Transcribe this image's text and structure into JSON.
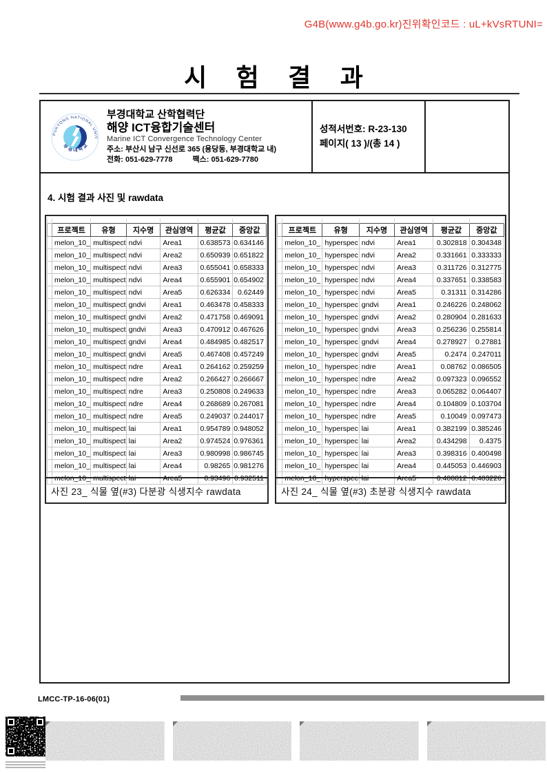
{
  "page": {
    "verification_code": "G4B(www.g4b.go.kr)진위확인코드 : uL+kVsRTUNI=",
    "title": "시 험 결 과"
  },
  "header": {
    "logo": {
      "ring_text_top": "PUKYONG NATIONAL UNIVERSITY",
      "ring_text_bottom": "부 경 대 학 교"
    },
    "org_line1": "부경대학교 산학협력단",
    "org_line2": "해양 ICT융합기술센터",
    "org_en": "Marine ICT Convergence Technology Center",
    "address": "주소: 부산시 남구 신선로 365 (용당동, 부경대학교 내)",
    "phone": "전화: 051-629-7778",
    "fax": "팩스: 051-629-7780",
    "report_no": "성적서번호: R-23-130",
    "page_info": "페이지( 13 )/(총 14 )"
  },
  "section_title": "4. 시험 결과 사진 및 rawdata",
  "tables": [
    {
      "caption": "사진 23_ 식물 옆(#3) 다분광 식생지수 rawdata",
      "headers": [
        "프로젝트",
        "유형",
        "지수명",
        "관심영역",
        "평균값",
        "중앙값"
      ],
      "rows": [
        [
          "melon_10_",
          "multispect",
          "ndvi",
          "Area1",
          "0.638573",
          "0.634146"
        ],
        [
          "melon_10_",
          "multispect",
          "ndvi",
          "Area2",
          "0.650939",
          "0.651822"
        ],
        [
          "melon_10_",
          "multispect",
          "ndvi",
          "Area3",
          "0.655041",
          "0.658333"
        ],
        [
          "melon_10_",
          "multispect",
          "ndvi",
          "Area4",
          "0.655901",
          "0.654902"
        ],
        [
          "melon_10_",
          "multispect",
          "ndvi",
          "Area5",
          "0.626334",
          "0.62449"
        ],
        [
          "melon_10_",
          "multispect",
          "gndvi",
          "Area1",
          "0.463478",
          "0.458333"
        ],
        [
          "melon_10_",
          "multispect",
          "gndvi",
          "Area2",
          "0.471758",
          "0.469091"
        ],
        [
          "melon_10_",
          "multispect",
          "gndvi",
          "Area3",
          "0.470912",
          "0.467626"
        ],
        [
          "melon_10_",
          "multispect",
          "gndvi",
          "Area4",
          "0.484985",
          "0.482517"
        ],
        [
          "melon_10_",
          "multispect",
          "gndvi",
          "Area5",
          "0.467408",
          "0.457249"
        ],
        [
          "melon_10_",
          "multispect",
          "ndre",
          "Area1",
          "0.264162",
          "0.259259"
        ],
        [
          "melon_10_",
          "multispect",
          "ndre",
          "Area2",
          "0.266427",
          "0.266667"
        ],
        [
          "melon_10_",
          "multispect",
          "ndre",
          "Area3",
          "0.250808",
          "0.249633"
        ],
        [
          "melon_10_",
          "multispect",
          "ndre",
          "Area4",
          "0.268689",
          "0.267081"
        ],
        [
          "melon_10_",
          "multispect",
          "ndre",
          "Area5",
          "0.249037",
          "0.244017"
        ],
        [
          "melon_10_",
          "multispect",
          "lai",
          "Area1",
          "0.954789",
          "0.948052"
        ],
        [
          "melon_10_",
          "multispect",
          "lai",
          "Area2",
          "0.974524",
          "0.976361"
        ],
        [
          "melon_10_",
          "multispect",
          "lai",
          "Area3",
          "0.980998",
          "0.986745"
        ],
        [
          "melon_10_",
          "multispect",
          "lai",
          "Area4",
          "0.98265",
          "0.981276"
        ],
        [
          "melon_10_",
          "multispect",
          "lai",
          "Area5",
          "0.93496",
          "0.932511"
        ]
      ]
    },
    {
      "caption": "사진 24_ 식물 옆(#3) 초분광 식생지수 rawdata",
      "headers": [
        "프로젝트",
        "유형",
        "지수명",
        "관심영역",
        "평균값",
        "중앙값"
      ],
      "rows": [
        [
          "melon_10_",
          "hyperspec",
          "ndvi",
          "Area1",
          "0.302818",
          "0.304348"
        ],
        [
          "melon_10_",
          "hyperspec",
          "ndvi",
          "Area2",
          "0.331661",
          "0.333333"
        ],
        [
          "melon_10_",
          "hyperspec",
          "ndvi",
          "Area3",
          "0.311726",
          "0.312775"
        ],
        [
          "melon_10_",
          "hyperspec",
          "ndvi",
          "Area4",
          "0.337651",
          "0.338583"
        ],
        [
          "melon_10_",
          "hyperspec",
          "ndvi",
          "Area5",
          "0.31311",
          "0.314286"
        ],
        [
          "melon_10_",
          "hyperspec",
          "gndvi",
          "Area1",
          "0.246226",
          "0.248062"
        ],
        [
          "melon_10_",
          "hyperspec",
          "gndvi",
          "Area2",
          "0.280904",
          "0.281633"
        ],
        [
          "melon_10_",
          "hyperspec",
          "gndvi",
          "Area3",
          "0.256236",
          "0.255814"
        ],
        [
          "melon_10_",
          "hyperspec",
          "gndvi",
          "Area4",
          "0.278927",
          "0.27881"
        ],
        [
          "melon_10_",
          "hyperspec",
          "gndvi",
          "Area5",
          "0.2474",
          "0.247011"
        ],
        [
          "melon_10_",
          "hyperspec",
          "ndre",
          "Area1",
          "0.08762",
          "0.086505"
        ],
        [
          "melon_10_",
          "hyperspec",
          "ndre",
          "Area2",
          "0.097323",
          "0.096552"
        ],
        [
          "melon_10_",
          "hyperspec",
          "ndre",
          "Area3",
          "0.065282",
          "0.064407"
        ],
        [
          "melon_10_",
          "hyperspec",
          "ndre",
          "Area4",
          "0.104809",
          "0.103704"
        ],
        [
          "melon_10_",
          "hyperspec",
          "ndre",
          "Area5",
          "0.10049",
          "0.097473"
        ],
        [
          "melon_10_",
          "hyperspec",
          "lai",
          "Area1",
          "0.382199",
          "0.385246"
        ],
        [
          "melon_10_",
          "hyperspec",
          "lai",
          "Area2",
          "0.434298",
          "0.4375"
        ],
        [
          "melon_10_",
          "hyperspec",
          "lai",
          "Area3",
          "0.398316",
          "0.400498"
        ],
        [
          "melon_10_",
          "hyperspec",
          "lai",
          "Area4",
          "0.445053",
          "0.446903"
        ],
        [
          "melon_10_",
          "hyperspec",
          "lai",
          "Area5",
          "0.400812",
          "0.403226"
        ]
      ]
    }
  ],
  "footer": {
    "doc_code": "LMCC-TP-16-06(01)"
  },
  "colors": {
    "verification_red": "#e2342c",
    "bar_gray": "#8f8f8f",
    "logo_navy": "#1f3d8f",
    "logo_cyan": "#7fd2ee",
    "grid_gray": "#c6c6c6"
  }
}
